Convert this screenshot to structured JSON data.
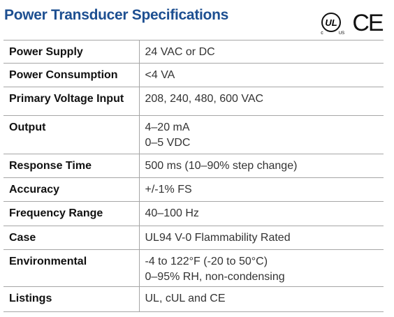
{
  "header": {
    "title": "Power Transducer Specifications",
    "logos": {
      "ul": "UL",
      "c": "c",
      "us": "US",
      "ce": "CE"
    }
  },
  "table": {
    "rows": [
      {
        "label": "Power Supply",
        "values": [
          "24 VAC or DC"
        ]
      },
      {
        "label": "Power Consumption",
        "values": [
          "<4 VA"
        ]
      },
      {
        "label": "Primary Voltage Input",
        "values": [
          "208, 240, 480, 600 VAC"
        ]
      },
      {
        "label": "Output",
        "values": [
          "4–20 mA",
          "0–5 VDC"
        ]
      },
      {
        "label": "Response Time",
        "values": [
          "500 ms (10–90% step change)"
        ]
      },
      {
        "label": "Accuracy",
        "values": [
          "+/-1% FS"
        ]
      },
      {
        "label": "Frequency Range",
        "values": [
          "40–100 Hz"
        ]
      },
      {
        "label": "Case",
        "values": [
          "UL94 V-0 Flammability Rated"
        ]
      },
      {
        "label": "Environmental",
        "values": [
          "-4 to 122°F (-20 to 50°C)",
          "0–95% RH, non-condensing"
        ]
      },
      {
        "label": "Listings",
        "values": [
          "UL, cUL and CE"
        ]
      }
    ]
  }
}
